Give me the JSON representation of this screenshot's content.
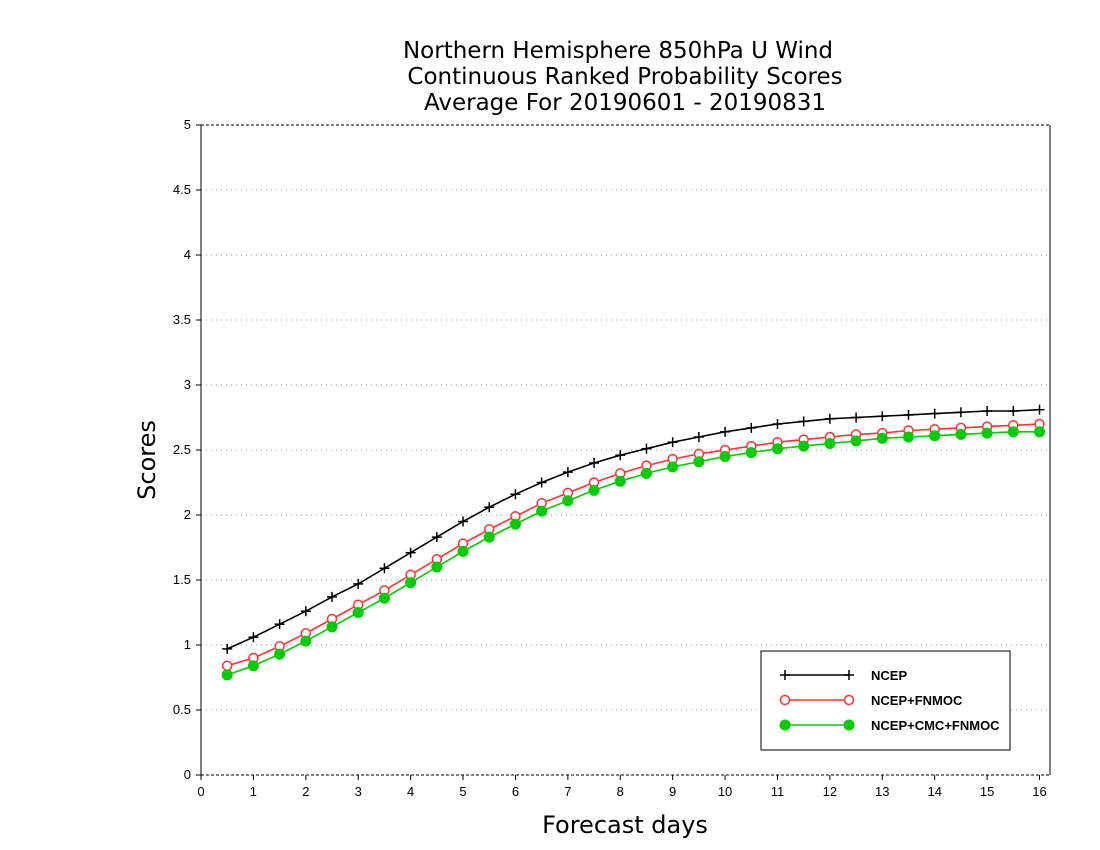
{
  "chart_data": {
    "type": "line",
    "title_lines": [
      "Northern Hemisphere 850hPa U Wind",
      "Continuous Ranked Probability Scores",
      "Average For 20190601 - 20190831"
    ],
    "xlabel": "Forecast days",
    "ylabel": "Scores",
    "xlim": [
      0,
      16.2
    ],
    "ylim": [
      0,
      5
    ],
    "x_ticks": [
      "0",
      "1",
      "2",
      "3",
      "4",
      "5",
      "6",
      "7",
      "8",
      "9",
      "10",
      "11",
      "12",
      "13",
      "14",
      "15",
      "16"
    ],
    "y_ticks": [
      "0",
      "0.5",
      "1",
      "1.5",
      "2",
      "2.5",
      "3",
      "3.5",
      "4",
      "4.5",
      "5"
    ],
    "grid": true,
    "legend_position": "bottom-right",
    "x": [
      0.5,
      1,
      1.5,
      2,
      2.5,
      3,
      3.5,
      4,
      4.5,
      5,
      5.5,
      6,
      6.5,
      7,
      7.5,
      8,
      8.5,
      9,
      9.5,
      10,
      10.5,
      11,
      11.5,
      12,
      12.5,
      13,
      13.5,
      14,
      14.5,
      15,
      15.5,
      16
    ],
    "series": [
      {
        "name": "NCEP",
        "color": "#000000",
        "marker": "plus",
        "values": [
          0.97,
          1.06,
          1.16,
          1.26,
          1.37,
          1.47,
          1.59,
          1.71,
          1.83,
          1.95,
          2.06,
          2.16,
          2.25,
          2.33,
          2.4,
          2.46,
          2.51,
          2.56,
          2.6,
          2.64,
          2.67,
          2.7,
          2.72,
          2.74,
          2.75,
          2.76,
          2.77,
          2.78,
          2.79,
          2.8,
          2.8,
          2.81
        ]
      },
      {
        "name": "NCEP+FNMOC",
        "color": "#ff3333",
        "marker": "open-circle",
        "values": [
          0.84,
          0.9,
          0.99,
          1.09,
          1.2,
          1.31,
          1.42,
          1.54,
          1.66,
          1.78,
          1.89,
          1.99,
          2.09,
          2.17,
          2.25,
          2.32,
          2.38,
          2.43,
          2.47,
          2.5,
          2.53,
          2.56,
          2.58,
          2.6,
          2.62,
          2.63,
          2.65,
          2.66,
          2.67,
          2.68,
          2.69,
          2.7
        ]
      },
      {
        "name": "NCEP+CMC+FNMOC",
        "color": "#00cc00",
        "marker": "filled-circle",
        "values": [
          0.77,
          0.84,
          0.93,
          1.03,
          1.14,
          1.25,
          1.36,
          1.48,
          1.6,
          1.72,
          1.83,
          1.93,
          2.03,
          2.11,
          2.19,
          2.26,
          2.32,
          2.37,
          2.41,
          2.45,
          2.48,
          2.51,
          2.53,
          2.55,
          2.57,
          2.59,
          2.6,
          2.61,
          2.62,
          2.63,
          2.64,
          2.64
        ]
      }
    ]
  }
}
